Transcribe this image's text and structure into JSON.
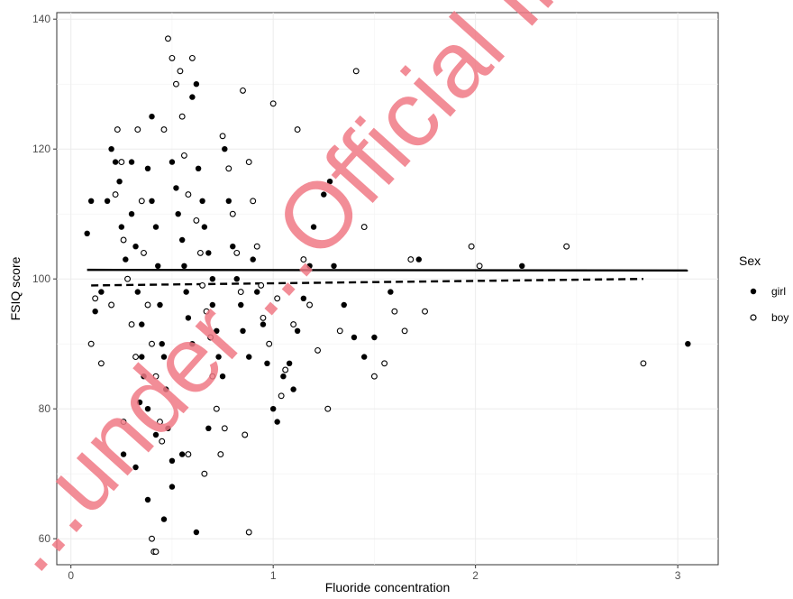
{
  "watermark": "...under ...Official Infor...",
  "chart_data": {
    "type": "scatter",
    "title": "",
    "xlabel": "Fluoride concentration",
    "ylabel": "FSIQ score",
    "xlim": [
      -0.07,
      3.2
    ],
    "ylim": [
      56,
      141
    ],
    "x_ticks": [
      0,
      1,
      2,
      3
    ],
    "y_ticks": [
      60,
      80,
      100,
      120,
      140
    ],
    "grid": true,
    "legend": {
      "title": "Sex",
      "placement": "right"
    },
    "series": [
      {
        "name": "girl",
        "marker": "filled-circle",
        "color": "#000000",
        "points": [
          [
            0.08,
            107
          ],
          [
            0.1,
            112
          ],
          [
            0.12,
            95
          ],
          [
            0.15,
            98
          ],
          [
            0.18,
            112
          ],
          [
            0.2,
            120
          ],
          [
            0.22,
            118
          ],
          [
            0.24,
            115
          ],
          [
            0.25,
            108
          ],
          [
            0.27,
            103
          ],
          [
            0.28,
            100
          ],
          [
            0.3,
            118
          ],
          [
            0.3,
            110
          ],
          [
            0.32,
            105
          ],
          [
            0.33,
            98
          ],
          [
            0.35,
            93
          ],
          [
            0.35,
            88
          ],
          [
            0.36,
            85
          ],
          [
            0.38,
            80
          ],
          [
            0.38,
            117
          ],
          [
            0.4,
            125
          ],
          [
            0.4,
            112
          ],
          [
            0.42,
            108
          ],
          [
            0.43,
            102
          ],
          [
            0.44,
            96
          ],
          [
            0.45,
            90
          ],
          [
            0.46,
            88
          ],
          [
            0.47,
            83
          ],
          [
            0.48,
            77
          ],
          [
            0.5,
            72
          ],
          [
            0.5,
            118
          ],
          [
            0.52,
            114
          ],
          [
            0.53,
            110
          ],
          [
            0.55,
            106
          ],
          [
            0.56,
            102
          ],
          [
            0.57,
            98
          ],
          [
            0.58,
            94
          ],
          [
            0.6,
            90
          ],
          [
            0.6,
            128
          ],
          [
            0.62,
            130
          ],
          [
            0.63,
            117
          ],
          [
            0.65,
            112
          ],
          [
            0.66,
            108
          ],
          [
            0.68,
            104
          ],
          [
            0.7,
            100
          ],
          [
            0.7,
            96
          ],
          [
            0.72,
            92
          ],
          [
            0.73,
            88
          ],
          [
            0.75,
            85
          ],
          [
            0.76,
            120
          ],
          [
            0.78,
            112
          ],
          [
            0.8,
            105
          ],
          [
            0.82,
            100
          ],
          [
            0.84,
            96
          ],
          [
            0.85,
            92
          ],
          [
            0.88,
            88
          ],
          [
            0.9,
            103
          ],
          [
            0.92,
            98
          ],
          [
            0.95,
            93
          ],
          [
            0.97,
            87
          ],
          [
            1.0,
            80
          ],
          [
            1.02,
            78
          ],
          [
            1.05,
            85
          ],
          [
            1.08,
            87
          ],
          [
            1.1,
            83
          ],
          [
            1.12,
            92
          ],
          [
            1.15,
            97
          ],
          [
            1.18,
            102
          ],
          [
            1.2,
            108
          ],
          [
            1.25,
            113
          ],
          [
            1.28,
            115
          ],
          [
            1.3,
            102
          ],
          [
            1.35,
            96
          ],
          [
            1.4,
            91
          ],
          [
            1.45,
            88
          ],
          [
            1.5,
            91
          ],
          [
            1.58,
            98
          ],
          [
            1.72,
            103
          ],
          [
            2.23,
            102
          ],
          [
            3.05,
            90
          ],
          [
            0.32,
            71
          ],
          [
            0.38,
            66
          ],
          [
            0.46,
            63
          ],
          [
            0.5,
            68
          ],
          [
            0.62,
            61
          ],
          [
            0.42,
            76
          ],
          [
            0.55,
            73
          ],
          [
            0.68,
            77
          ],
          [
            0.26,
            73
          ],
          [
            0.34,
            81
          ]
        ]
      },
      {
        "name": "boy",
        "marker": "open-circle",
        "color": "#000000",
        "points": [
          [
            0.1,
            90
          ],
          [
            0.12,
            97
          ],
          [
            0.15,
            87
          ],
          [
            0.2,
            96
          ],
          [
            0.22,
            113
          ],
          [
            0.23,
            123
          ],
          [
            0.25,
            118
          ],
          [
            0.26,
            106
          ],
          [
            0.28,
            100
          ],
          [
            0.3,
            93
          ],
          [
            0.32,
            88
          ],
          [
            0.33,
            123
          ],
          [
            0.35,
            112
          ],
          [
            0.36,
            104
          ],
          [
            0.38,
            96
          ],
          [
            0.4,
            90
          ],
          [
            0.42,
            85
          ],
          [
            0.44,
            78
          ],
          [
            0.45,
            75
          ],
          [
            0.46,
            123
          ],
          [
            0.48,
            137
          ],
          [
            0.5,
            134
          ],
          [
            0.52,
            130
          ],
          [
            0.54,
            132
          ],
          [
            0.55,
            125
          ],
          [
            0.56,
            119
          ],
          [
            0.58,
            113
          ],
          [
            0.6,
            134
          ],
          [
            0.62,
            109
          ],
          [
            0.64,
            104
          ],
          [
            0.65,
            99
          ],
          [
            0.67,
            95
          ],
          [
            0.69,
            91
          ],
          [
            0.7,
            85
          ],
          [
            0.72,
            80
          ],
          [
            0.74,
            73
          ],
          [
            0.75,
            122
          ],
          [
            0.78,
            117
          ],
          [
            0.8,
            110
          ],
          [
            0.82,
            104
          ],
          [
            0.84,
            98
          ],
          [
            0.85,
            129
          ],
          [
            0.88,
            118
          ],
          [
            0.9,
            112
          ],
          [
            0.92,
            105
          ],
          [
            0.94,
            99
          ],
          [
            0.95,
            94
          ],
          [
            0.98,
            90
          ],
          [
            1.0,
            127
          ],
          [
            1.02,
            97
          ],
          [
            1.04,
            82
          ],
          [
            1.06,
            86
          ],
          [
            1.1,
            93
          ],
          [
            1.12,
            123
          ],
          [
            1.15,
            103
          ],
          [
            1.18,
            96
          ],
          [
            1.22,
            89
          ],
          [
            1.27,
            80
          ],
          [
            1.33,
            92
          ],
          [
            1.41,
            132
          ],
          [
            1.45,
            108
          ],
          [
            1.5,
            85
          ],
          [
            1.55,
            87
          ],
          [
            1.6,
            95
          ],
          [
            1.65,
            92
          ],
          [
            1.68,
            103
          ],
          [
            1.75,
            95
          ],
          [
            1.98,
            105
          ],
          [
            2.02,
            102
          ],
          [
            2.45,
            105
          ],
          [
            2.83,
            87
          ],
          [
            0.4,
            60
          ],
          [
            0.41,
            58
          ],
          [
            0.42,
            58
          ],
          [
            0.88,
            61
          ],
          [
            0.58,
            73
          ],
          [
            0.66,
            70
          ],
          [
            0.76,
            77
          ],
          [
            0.86,
            76
          ],
          [
            0.26,
            78
          ]
        ]
      }
    ],
    "fit_lines": [
      {
        "series": "girl",
        "style": "solid",
        "x": [
          0.08,
          3.05
        ],
        "y": [
          101.4,
          101.3
        ]
      },
      {
        "series": "boy",
        "style": "dashed",
        "x": [
          0.1,
          2.83
        ],
        "y": [
          99.0,
          100.0
        ]
      }
    ]
  }
}
